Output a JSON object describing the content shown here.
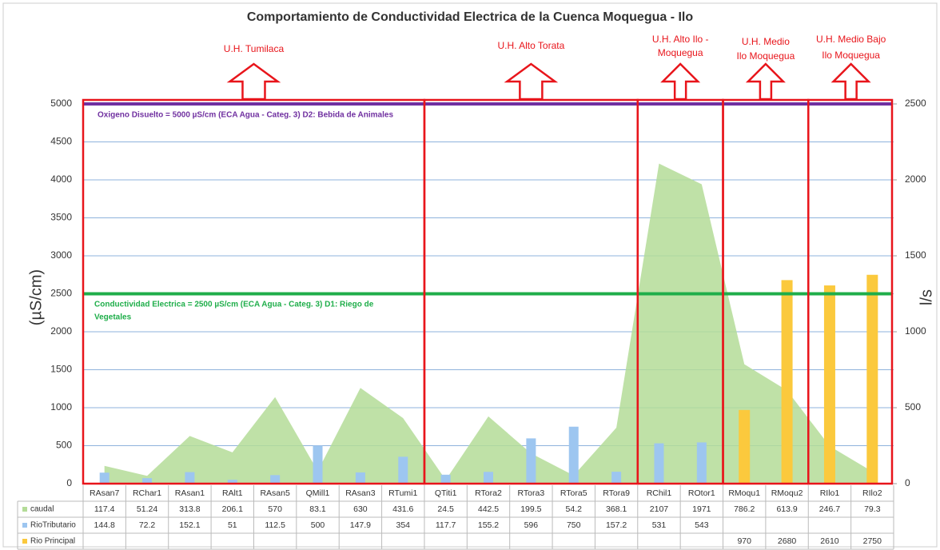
{
  "chart_data": {
    "type": "combo",
    "title": "Comportamiento de Conductividad Electrica de la Cuenca Moquegua  - Ilo",
    "y_label": "(µS/cm)",
    "y2_label": "l/s",
    "categories": [
      "RAsan7",
      "RChar1",
      "RAsan1",
      "RAlt1",
      "RAsan5",
      "QMill1",
      "RAsan3",
      "RTumi1",
      "QTiti1",
      "RTora2",
      "RTora3",
      "RTora5",
      "RTora9",
      "RChil1",
      "ROtor1",
      "RMoqu1",
      "RMoqu2",
      "RIlo1",
      "RIlo2"
    ],
    "series": [
      {
        "name": "caudal",
        "type": "area",
        "axis": "y2",
        "color": "#b4dc98",
        "values": [
          117.4,
          51.24,
          313.8,
          206.1,
          570,
          83.1,
          630,
          431.6,
          24.5,
          442.5,
          199.5,
          54.2,
          368.1,
          2107,
          1971,
          786.2,
          613.9,
          246.7,
          79.3
        ]
      },
      {
        "name": "RioTributario",
        "type": "bar",
        "color": "#9dc6f0",
        "values": [
          144.8,
          72.2,
          152.1,
          51,
          112.5,
          500,
          147.9,
          354,
          117.7,
          155.2,
          596,
          750,
          157.2,
          531,
          543,
          null,
          null,
          null,
          null
        ]
      },
      {
        "name": "Rio Principal",
        "type": "bar",
        "color": "#fbc93d",
        "values": [
          null,
          null,
          null,
          null,
          null,
          null,
          null,
          null,
          null,
          null,
          null,
          null,
          null,
          null,
          null,
          970,
          2680,
          2610,
          2750
        ]
      }
    ],
    "ylim": [
      0,
      5000
    ],
    "yticks": [
      0,
      500,
      1000,
      1500,
      2000,
      2500,
      3000,
      3500,
      4000,
      4500,
      5000
    ],
    "y2lim": [
      0,
      2500
    ],
    "y2ticks": [
      0,
      500,
      1000,
      1500,
      2000,
      2500
    ],
    "grid": true,
    "reference_lines": [
      {
        "value": 5000,
        "color": "#7030a0",
        "label_lines": [
          "Oxigeno Disuelto = 5000 µS/cm (ECA Agua - Categ. 3) D2: Bebida de Animales"
        ]
      },
      {
        "value": 2500,
        "color": "#1fae4a",
        "label_lines": [
          "Conductividad Electrica = 2500 µS/cm (ECA Agua - Categ. 3) D1:  Riego de",
          "Vegetales"
        ]
      }
    ],
    "regions": [
      {
        "label_lines": [
          "U.H. Tumilaca"
        ]
      },
      {
        "label_lines": [
          "U.H. Alto Torata"
        ]
      },
      {
        "label_lines": [
          "U.H. Alto Ilo -",
          "Moquegua"
        ]
      },
      {
        "label_lines": [
          "U.H. Medio",
          "Ilo Moquegua"
        ]
      },
      {
        "label_lines": [
          "U.H. Medio Bajo",
          "Ilo Moquegua"
        ]
      }
    ]
  }
}
